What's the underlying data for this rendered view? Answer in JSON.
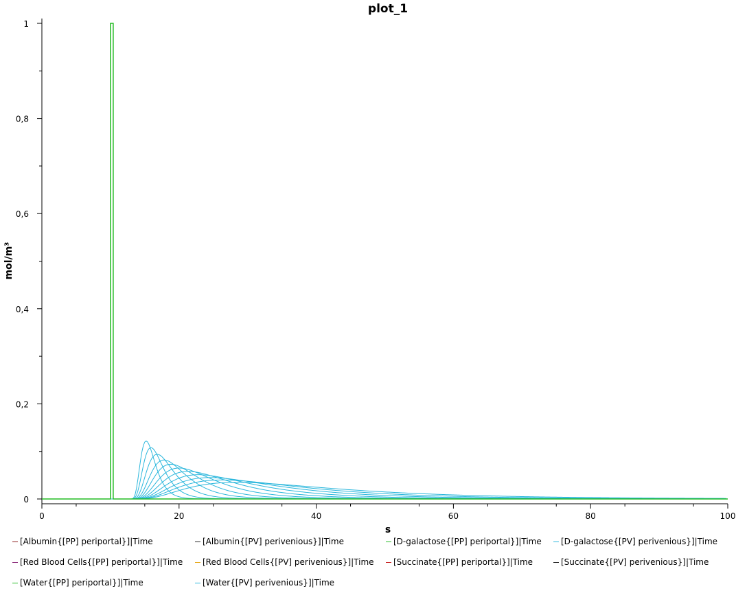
{
  "chart_data": {
    "type": "line",
    "title": "plot_1",
    "xlabel": "s",
    "ylabel": "mol/m³",
    "xlim": [
      0,
      100
    ],
    "ylim": [
      0,
      1
    ],
    "x_ticks": [
      0,
      20,
      40,
      60,
      80,
      100
    ],
    "x_tick_labels": [
      "0",
      "20",
      "40",
      "60",
      "80",
      "100"
    ],
    "y_ticks": [
      0,
      0.2,
      0.4,
      0.6,
      0.8,
      1
    ],
    "y_tick_labels": [
      "0",
      "0,2",
      "0,4",
      "0,6",
      "0,8",
      "1"
    ],
    "grid": false,
    "legend_position": "bottom",
    "pulse": {
      "series": "[D-galactose{[PP] periportal}]|Time",
      "start": 10,
      "end": 10.4,
      "value": 1,
      "color": "#22bb22"
    },
    "perivenous_curves": {
      "series": "[D-galactose{[PV] perivenious}]|Time",
      "color": "#29b6dc",
      "peaks": [
        {
          "x": 15.2,
          "y": 0.122
        },
        {
          "x": 15.9,
          "y": 0.108
        },
        {
          "x": 16.8,
          "y": 0.094
        },
        {
          "x": 17.8,
          "y": 0.082
        },
        {
          "x": 18.8,
          "y": 0.073
        },
        {
          "x": 20.0,
          "y": 0.065
        },
        {
          "x": 21.3,
          "y": 0.058
        },
        {
          "x": 22.8,
          "y": 0.051
        },
        {
          "x": 24.5,
          "y": 0.045
        },
        {
          "x": 26.3,
          "y": 0.04
        },
        {
          "x": 28.5,
          "y": 0.035
        }
      ]
    },
    "series": [
      {
        "name": "[Albumin{[PP] periportal}]|Time",
        "color": "#8b1a1a"
      },
      {
        "name": "[Albumin{[PV] perivenious}]|Time",
        "color": "#222222"
      },
      {
        "name": "[D-galactose{[PP] periportal}]|Time",
        "color": "#22bb22"
      },
      {
        "name": "[D-galactose{[PV] perivenious}]|Time",
        "color": "#29b6dc"
      },
      {
        "name": "[Red Blood Cells{[PP] periportal}]|Time",
        "color": "#8b2a7a"
      },
      {
        "name": "[Red Blood Cells{[PV] perivenious}]|Time",
        "color": "#e6a817"
      },
      {
        "name": "[Succinate{[PP] periportal}]|Time",
        "color": "#c81e1e"
      },
      {
        "name": "[Succinate{[PV] perivenious}]|Time",
        "color": "#222222"
      },
      {
        "name": "[Water{[PP] periportal}]|Time",
        "color": "#22bb22"
      },
      {
        "name": "[Water{[PV] perivenious}]|Time",
        "color": "#29b6dc"
      }
    ]
  }
}
